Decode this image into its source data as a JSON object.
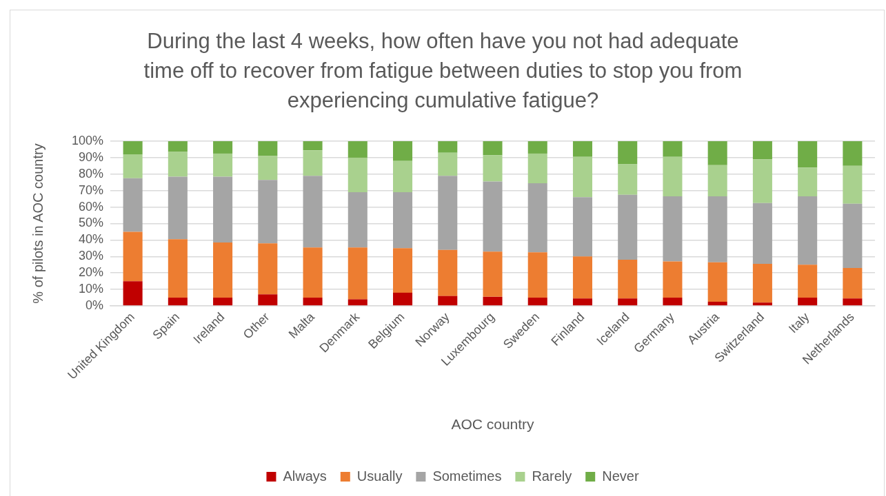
{
  "chart_data": {
    "type": "bar",
    "title": "During the last 4 weeks, how often have you not had adequate time off to recover from fatigue between duties to stop you from experiencing cumulative fatigue?",
    "xlabel": "AOC country",
    "ylabel": "% of pilots in AOC country",
    "categories": [
      "United Kingdom",
      "Spain",
      "Ireland",
      "Other",
      "Malta",
      "Denmark",
      "Belgium",
      "Norway",
      "Luxembourg",
      "Sweden",
      "Finland",
      "Iceland",
      "Germany",
      "Austria",
      "Switzerland",
      "Italy",
      "Netherlands"
    ],
    "stacked": true,
    "ylim": [
      0,
      100
    ],
    "yticks": [
      {
        "value": 0,
        "label": "0%"
      },
      {
        "value": 10,
        "label": "10%"
      },
      {
        "value": 20,
        "label": "20%"
      },
      {
        "value": 30,
        "label": "30%"
      },
      {
        "value": 40,
        "label": "40%"
      },
      {
        "value": 50,
        "label": "50%"
      },
      {
        "value": 60,
        "label": "60%"
      },
      {
        "value": 70,
        "label": "70%"
      },
      {
        "value": 80,
        "label": "80%"
      },
      {
        "value": 90,
        "label": "90%"
      },
      {
        "value": 100,
        "label": "100%"
      }
    ],
    "grid": "y",
    "legend": "bottom",
    "series": [
      {
        "name": "Always",
        "color": "#c00000",
        "values": [
          15,
          5,
          5,
          7,
          5,
          4,
          8,
          6,
          5.5,
          5,
          4.5,
          4.5,
          5,
          2.5,
          2,
          5,
          4.5
        ]
      },
      {
        "name": "Usually",
        "color": "#ed7d31",
        "values": [
          30,
          35.5,
          33.5,
          31,
          30.5,
          31.5,
          27,
          28,
          27.5,
          27.5,
          25.5,
          23.5,
          22,
          24,
          23.5,
          20,
          18.5
        ]
      },
      {
        "name": "Sometimes",
        "color": "#a5a5a5",
        "values": [
          32.5,
          38,
          40,
          38.5,
          43.5,
          33.5,
          34,
          45,
          42.5,
          42,
          36,
          39.5,
          39.5,
          40,
          37,
          41.5,
          39
        ]
      },
      {
        "name": "Rarely",
        "color": "#a9d18e",
        "values": [
          14.5,
          15,
          14,
          14.5,
          15.5,
          21,
          19,
          14,
          16,
          18,
          24.5,
          18.5,
          24,
          19,
          26.5,
          17.5,
          23
        ]
      },
      {
        "name": "Never",
        "color": "#70ad47",
        "values": [
          8,
          6.5,
          7.5,
          9,
          5.5,
          10,
          12,
          7,
          8.5,
          7.5,
          9.5,
          14,
          9.5,
          14.5,
          11,
          16,
          15
        ]
      }
    ]
  }
}
